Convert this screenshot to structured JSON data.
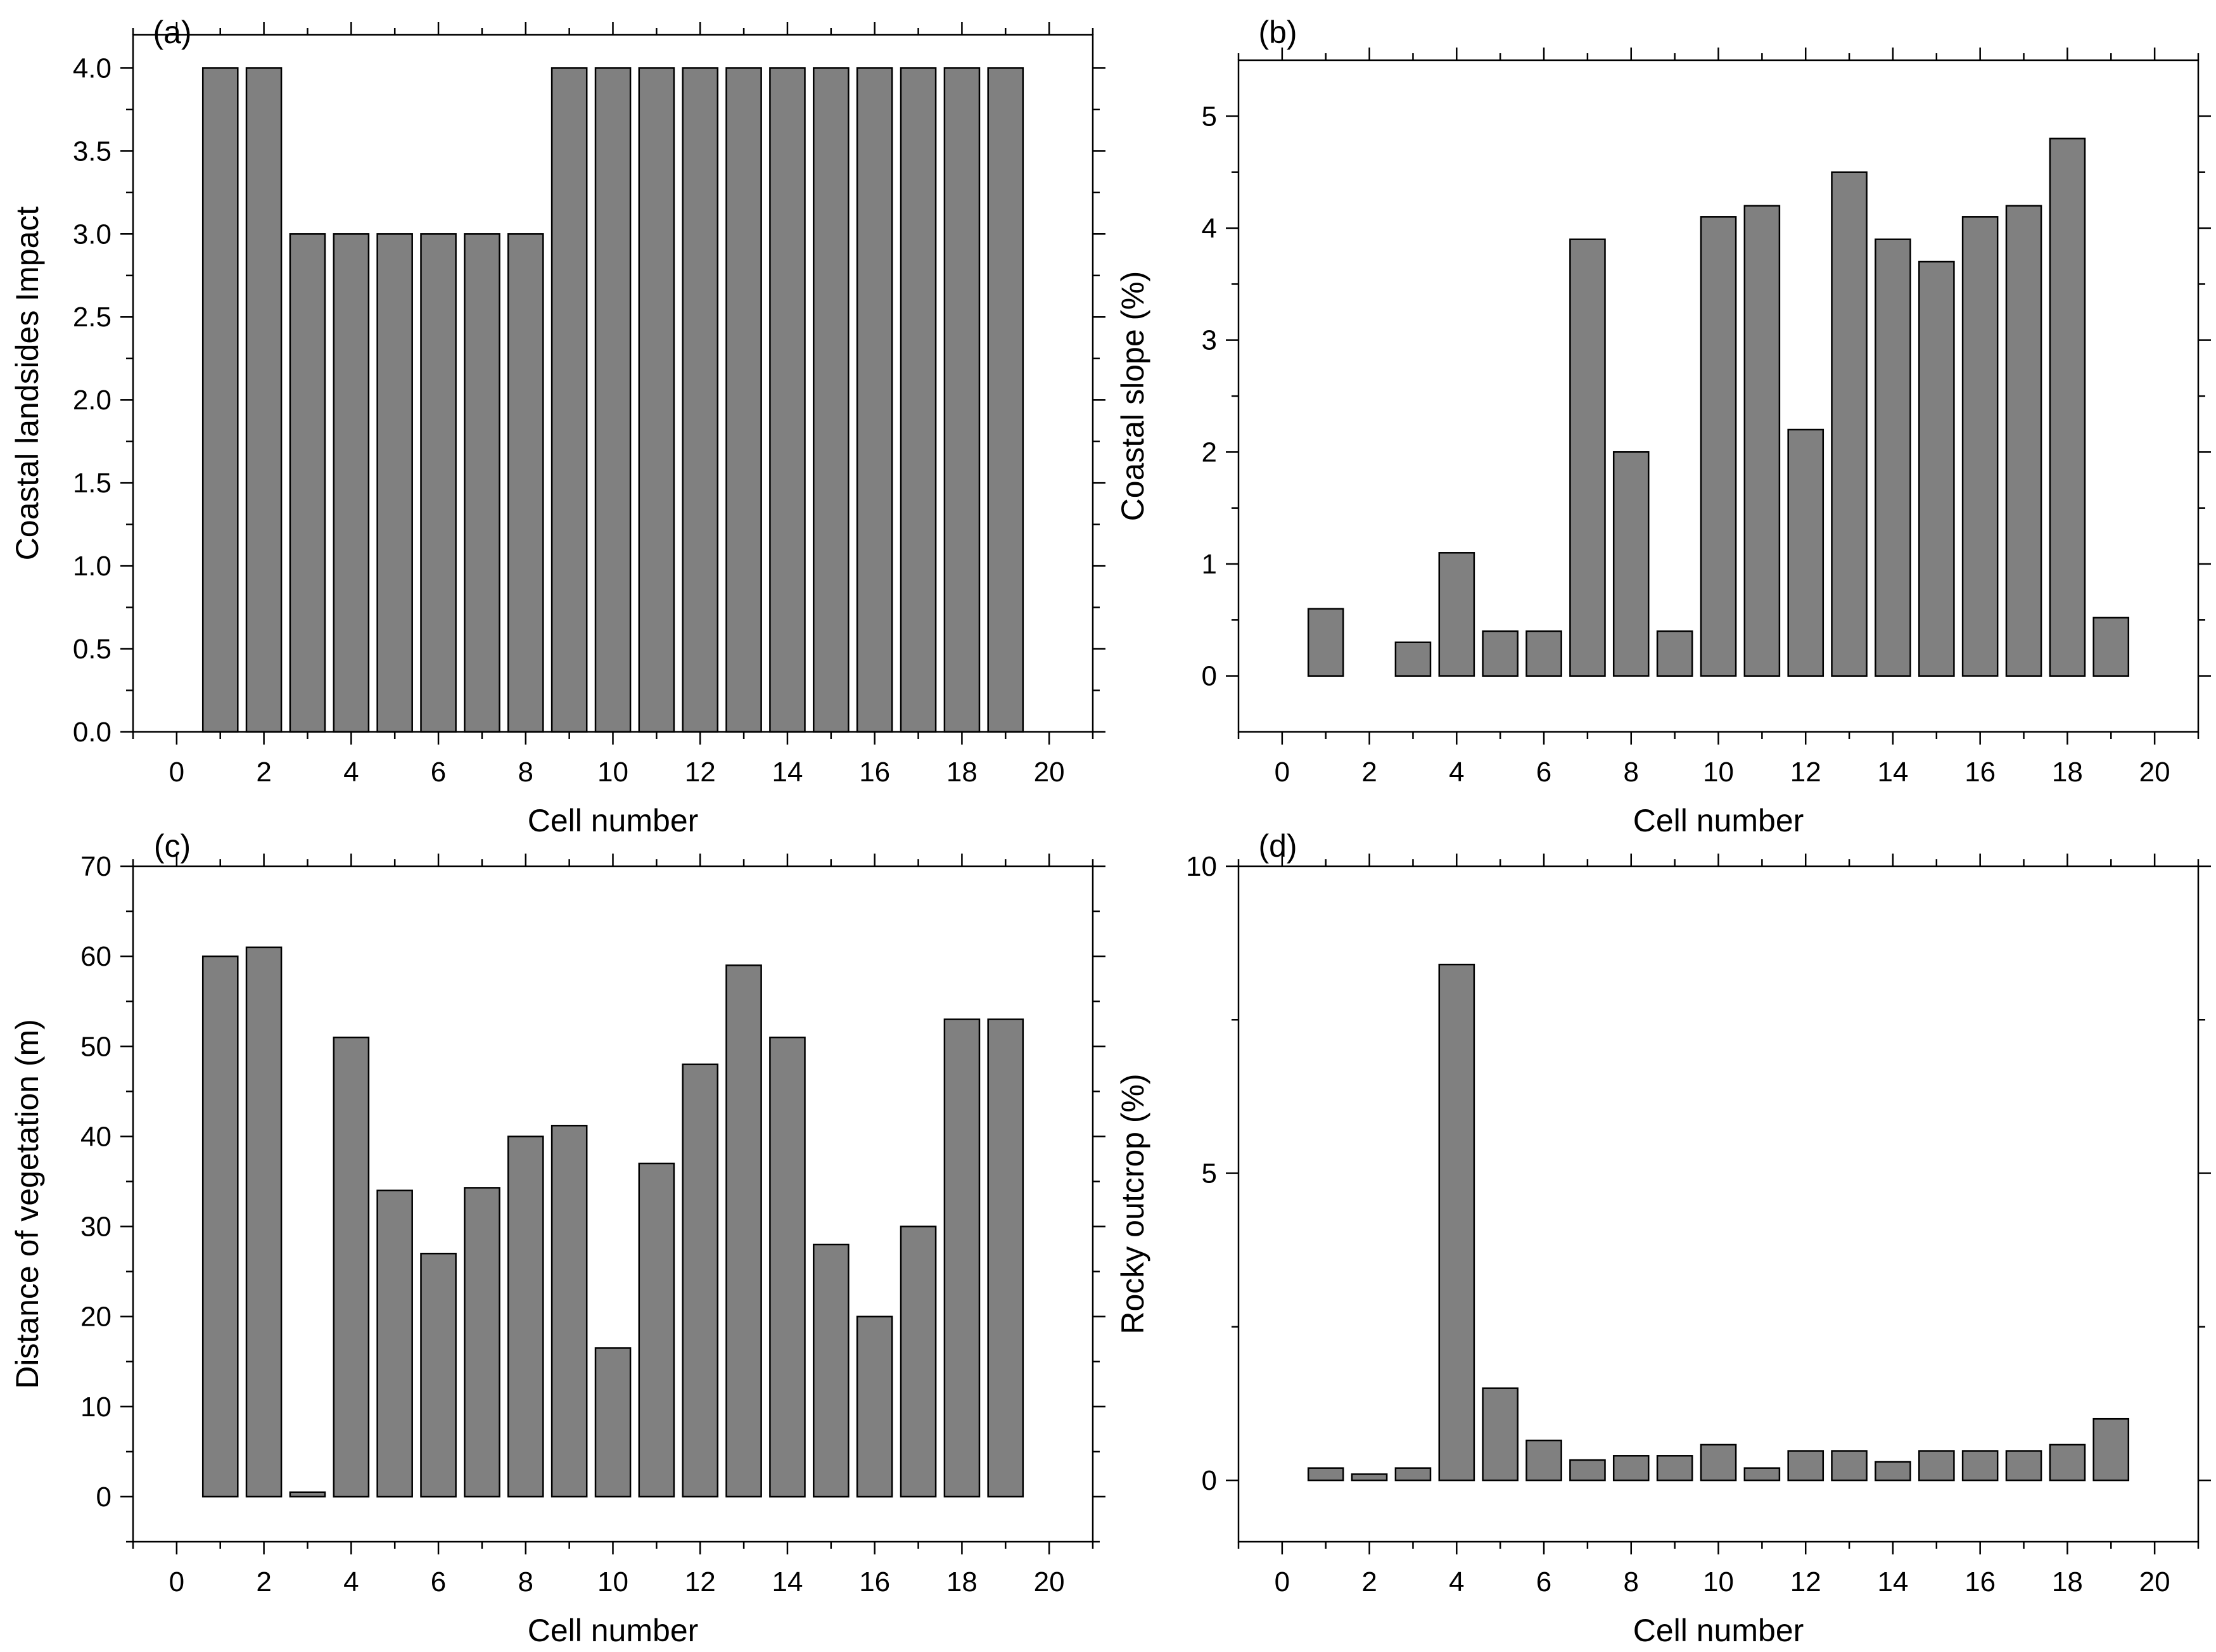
{
  "chart_data": [
    {
      "type": "bar",
      "panel_label": "(a)",
      "title": "",
      "xlabel": "Cell number",
      "ylabel": "Coastal landsides Impact",
      "x": [
        1,
        2,
        3,
        4,
        5,
        6,
        7,
        8,
        9,
        10,
        11,
        12,
        13,
        14,
        15,
        16,
        17,
        18,
        19
      ],
      "values": [
        4,
        4,
        3,
        3,
        3,
        3,
        3,
        3,
        4,
        4,
        4,
        4,
        4,
        4,
        4,
        4,
        4,
        4,
        4
      ],
      "xlim": [
        -1,
        21
      ],
      "ylim": [
        0,
        4.2
      ],
      "xticks": [
        0,
        2,
        4,
        6,
        8,
        10,
        12,
        14,
        16,
        18,
        20
      ],
      "xtick_labels": [
        "0",
        "2",
        "4",
        "6",
        "8",
        "10",
        "12",
        "14",
        "16",
        "18",
        "20"
      ],
      "yticks": [
        0,
        0.5,
        1,
        1.5,
        2,
        2.5,
        3,
        3.5,
        4
      ],
      "ytick_labels": [
        "0.0",
        "0.5",
        "1.0",
        "1.5",
        "2.0",
        "2.5",
        "3.0",
        "3.5",
        "4.0"
      ],
      "y_minor_ticks": [
        0.25,
        0.75,
        1.25,
        1.75,
        2.25,
        2.75,
        3.25,
        3.75
      ],
      "grid": false,
      "bar_color": "#808080"
    },
    {
      "type": "bar",
      "panel_label": "(b)",
      "title": "",
      "xlabel": "Cell number",
      "ylabel": "Coastal slope (%)",
      "x": [
        1,
        2,
        3,
        4,
        5,
        6,
        7,
        8,
        9,
        10,
        11,
        12,
        13,
        14,
        15,
        16,
        17,
        18,
        19
      ],
      "values": [
        0.6,
        0,
        0.3,
        1.1,
        0.4,
        0.4,
        3.9,
        2.0,
        0.4,
        4.1,
        4.2,
        2.2,
        4.5,
        3.9,
        3.7,
        4.1,
        4.2,
        4.8,
        0.52
      ],
      "xlim": [
        -1,
        21
      ],
      "ylim": [
        -0.5,
        5.5
      ],
      "xticks": [
        0,
        2,
        4,
        6,
        8,
        10,
        12,
        14,
        16,
        18,
        20
      ],
      "xtick_labels": [
        "0",
        "2",
        "4",
        "6",
        "8",
        "10",
        "12",
        "14",
        "16",
        "18",
        "20"
      ],
      "yticks": [
        0,
        1,
        2,
        3,
        4,
        5
      ],
      "ytick_labels": [
        "0",
        "1",
        "2",
        "3",
        "4",
        "5"
      ],
      "y_minor_ticks": [
        0.5,
        1.5,
        2.5,
        3.5,
        4.5
      ],
      "grid": false,
      "bar_color": "#808080"
    },
    {
      "type": "bar",
      "panel_label": "(c)",
      "title": "",
      "xlabel": "Cell number",
      "ylabel": "Distance of vegetation (m)",
      "x": [
        1,
        2,
        3,
        4,
        5,
        6,
        7,
        8,
        9,
        10,
        11,
        12,
        13,
        14,
        15,
        16,
        17,
        18,
        19
      ],
      "values": [
        60,
        61,
        0.5,
        51,
        34,
        27,
        34.3,
        40,
        41.2,
        16.5,
        37,
        48,
        59,
        51,
        28,
        20,
        30,
        53,
        53
      ],
      "xlim": [
        -1,
        21
      ],
      "ylim": [
        -5,
        70
      ],
      "xticks": [
        0,
        2,
        4,
        6,
        8,
        10,
        12,
        14,
        16,
        18,
        20
      ],
      "xtick_labels": [
        "0",
        "2",
        "4",
        "6",
        "8",
        "10",
        "12",
        "14",
        "16",
        "18",
        "20"
      ],
      "yticks": [
        0,
        10,
        20,
        30,
        40,
        50,
        60,
        70
      ],
      "ytick_labels": [
        "0",
        "10",
        "20",
        "30",
        "40",
        "50",
        "60",
        "70"
      ],
      "y_minor_ticks": [
        -5,
        5,
        15,
        25,
        35,
        45,
        55,
        65
      ],
      "grid": false,
      "bar_color": "#808080"
    },
    {
      "type": "bar",
      "panel_label": "(d)",
      "title": "",
      "xlabel": "Cell number",
      "ylabel": "Rocky outcrop (%)",
      "x": [
        1,
        2,
        3,
        4,
        5,
        6,
        7,
        8,
        9,
        10,
        11,
        12,
        13,
        14,
        15,
        16,
        17,
        18,
        19
      ],
      "values": [
        0.2,
        0.1,
        0.2,
        8.4,
        1.5,
        0.65,
        0.33,
        0.4,
        0.4,
        0.58,
        0.2,
        0.48,
        0.48,
        0.3,
        0.48,
        0.48,
        0.48,
        0.58,
        1.0
      ],
      "xlim": [
        -1,
        21
      ],
      "ylim": [
        -1,
        10
      ],
      "xticks": [
        0,
        2,
        4,
        6,
        8,
        10,
        12,
        14,
        16,
        18,
        20
      ],
      "xtick_labels": [
        "0",
        "2",
        "4",
        "6",
        "8",
        "10",
        "12",
        "14",
        "16",
        "18",
        "20"
      ],
      "yticks": [
        0,
        5,
        10
      ],
      "ytick_labels": [
        "0",
        "5",
        "10"
      ],
      "y_minor_ticks": [
        2.5,
        7.5
      ],
      "grid": false,
      "bar_color": "#808080"
    }
  ]
}
